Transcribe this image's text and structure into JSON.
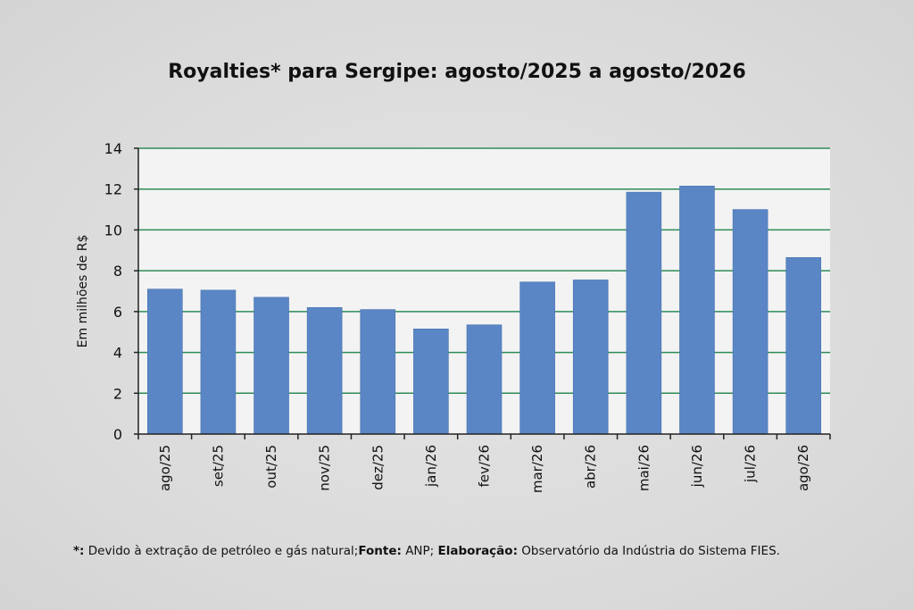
{
  "chart_data": {
    "type": "bar",
    "title": "Royalties* para Sergipe: agosto/2025 a agosto/2026",
    "xlabel": "",
    "ylabel": "Em milhões de R$",
    "ylim": [
      0,
      14
    ],
    "yticks": [
      0,
      2,
      4,
      6,
      8,
      10,
      12,
      14
    ],
    "grid": true,
    "categories": [
      "ago/25",
      "set/25",
      "out/25",
      "nov/25",
      "dez/25",
      "jan/26",
      "fev/26",
      "mar/26",
      "abr/26",
      "mai/26",
      "jun/26",
      "jul/26",
      "ago/26"
    ],
    "values": [
      7.1,
      7.05,
      6.7,
      6.2,
      6.1,
      5.15,
      5.35,
      7.45,
      7.55,
      11.85,
      12.15,
      11.0,
      8.65
    ],
    "colors": {
      "bar": "#5a86c6",
      "grid": "#2e8b57",
      "plot_bg": "#f3f3f3",
      "axis": "#222222"
    }
  },
  "footnote": {
    "mark": "*:",
    "note": " Devido à extração de petróleo e gás natural;",
    "source_label": "Fonte:",
    "source": " ANP; ",
    "credit_label": "Elaboração:",
    "credit": " Observatório da Indústria do Sistema FIES."
  }
}
